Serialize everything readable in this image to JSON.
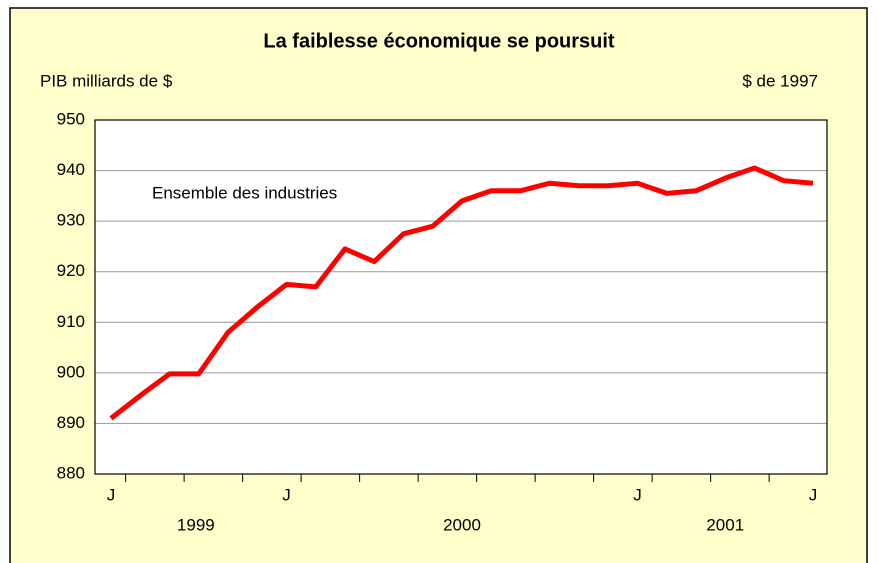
{
  "chart_data": {
    "type": "line",
    "title": "La faiblesse économique se poursuit",
    "y_axis_label": "PIB milliards de $",
    "units_note": "$ de 1997",
    "annotation": "Ensemble des industries",
    "categories": [
      "J",
      null,
      null,
      null,
      null,
      null,
      "J",
      null,
      null,
      null,
      null,
      null,
      null,
      null,
      null,
      null,
      null,
      null,
      "J",
      null,
      null,
      null,
      null,
      null,
      "J"
    ],
    "year_labels": [
      "1999",
      "2000",
      "2001"
    ],
    "series": [
      {
        "name": "Ensemble des industries",
        "color": "#ff0000",
        "values": [
          891,
          895.5,
          899.8,
          899.8,
          908,
          913,
          917.5,
          917,
          924.5,
          922,
          927.5,
          929,
          934,
          936,
          936,
          937.5,
          937,
          937,
          937.5,
          935.5,
          936,
          938.5,
          940.5,
          938,
          937.5
        ]
      }
    ],
    "ylim": [
      880,
      950
    ],
    "yticks": [
      880,
      890,
      900,
      910,
      920,
      930,
      940,
      950
    ],
    "grid": true
  }
}
